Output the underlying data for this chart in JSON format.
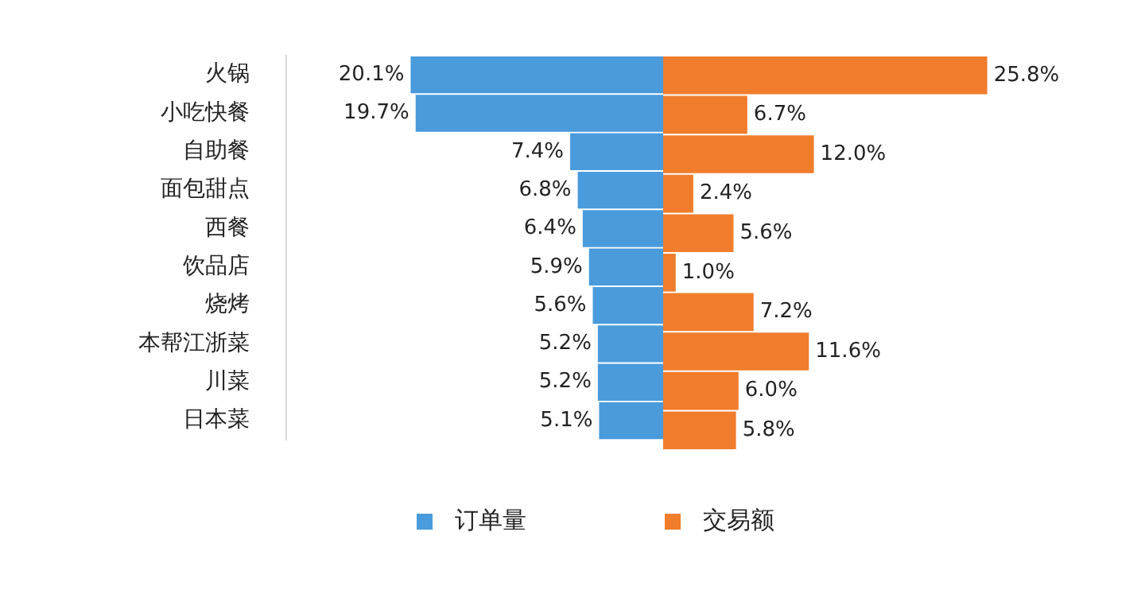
{
  "chart_data": [
    {
      "type": "bar",
      "orientation": "horizontal",
      "categories": [
        "火锅",
        "小吃快餐",
        "自助餐",
        "面包甜点",
        "西餐",
        "饮品店",
        "烧烤",
        "本帮江浙菜",
        "川菜",
        "日本菜"
      ],
      "xlim": [
        30,
        0
      ],
      "series": [
        {
          "name": "订单量",
          "color": "#4a9bdc",
          "values": [
            20.1,
            19.7,
            7.4,
            6.8,
            6.4,
            5.9,
            5.6,
            5.2,
            5.2,
            5.1
          ],
          "value_labels": [
            "20.1%",
            "19.7%",
            "7.4%",
            "6.8%",
            "6.4%",
            "5.9%",
            "5.6%",
            "5.2%",
            "5.2%",
            "5.1%"
          ]
        }
      ],
      "legend": "bottom"
    },
    {
      "type": "bar",
      "orientation": "horizontal",
      "categories": [
        null,
        null,
        null,
        null,
        null,
        null,
        null,
        null,
        null,
        null
      ],
      "tick_labels": false,
      "series": [
        {
          "name": "交易额",
          "color": "#f07d2c",
          "values": [
            25.8,
            6.7,
            12.0,
            2.4,
            5.6,
            1.0,
            7.2,
            11.6,
            6.0,
            5.8
          ],
          "value_labels": [
            "25.8%",
            "6.7%",
            "12.0%",
            "2.4%",
            "5.6%",
            "1.0%",
            "7.2%",
            "11.6%",
            "6.0%",
            "5.8%"
          ]
        }
      ],
      "legend": "bottom"
    }
  ]
}
